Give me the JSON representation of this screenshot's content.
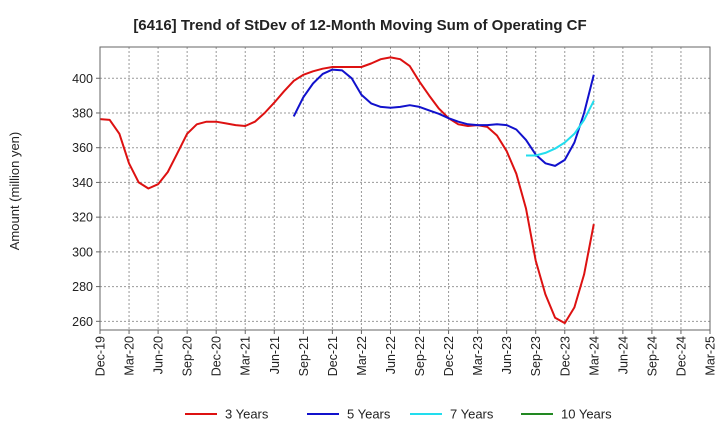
{
  "chart_data": {
    "type": "line",
    "title": "[6416]  Trend of StDev of 12-Month Moving Sum of Operating CF",
    "xlabel": "",
    "ylabel": "Amount (million yen)",
    "ylim": [
      255,
      418
    ],
    "yticks": [
      260,
      280,
      300,
      320,
      340,
      360,
      380,
      400
    ],
    "x_ticks": [
      "Dec-19",
      "Mar-20",
      "Jun-20",
      "Sep-20",
      "Dec-20",
      "Mar-21",
      "Jun-21",
      "Sep-21",
      "Dec-21",
      "Mar-22",
      "Jun-22",
      "Sep-22",
      "Dec-22",
      "Mar-23",
      "Jun-23",
      "Sep-23",
      "Dec-23",
      "Mar-24",
      "Jun-24",
      "Sep-24",
      "Dec-24",
      "Mar-25"
    ],
    "grid": true,
    "legend_position": "bottom",
    "series": [
      {
        "name": "3 Years",
        "color": "#dd1111",
        "points": [
          [
            "2019-12",
            376.5
          ],
          [
            "2020-01",
            376
          ],
          [
            "2020-02",
            368
          ],
          [
            "2020-03",
            351
          ],
          [
            "2020-04",
            340
          ],
          [
            "2020-05",
            336.5
          ],
          [
            "2020-06",
            339
          ],
          [
            "2020-07",
            346
          ],
          [
            "2020-08",
            357
          ],
          [
            "2020-09",
            368
          ],
          [
            "2020-10",
            373.5
          ],
          [
            "2020-11",
            375
          ],
          [
            "2020-12",
            375
          ],
          [
            "2021-01",
            374
          ],
          [
            "2021-02",
            373
          ],
          [
            "2021-03",
            372.5
          ],
          [
            "2021-04",
            375
          ],
          [
            "2021-05",
            380
          ],
          [
            "2021-06",
            386
          ],
          [
            "2021-07",
            392.5
          ],
          [
            "2021-08",
            398.5
          ],
          [
            "2021-09",
            402
          ],
          [
            "2021-10",
            404
          ],
          [
            "2021-11",
            405.5
          ],
          [
            "2021-12",
            406.5
          ],
          [
            "2022-01",
            406.5
          ],
          [
            "2022-02",
            406.5
          ],
          [
            "2022-03",
            406.5
          ],
          [
            "2022-04",
            408.5
          ],
          [
            "2022-05",
            411
          ],
          [
            "2022-06",
            412
          ],
          [
            "2022-07",
            411
          ],
          [
            "2022-08",
            407
          ],
          [
            "2022-09",
            398
          ],
          [
            "2022-10",
            390
          ],
          [
            "2022-11",
            382.5
          ],
          [
            "2022-12",
            377
          ],
          [
            "2023-01",
            373.5
          ],
          [
            "2023-02",
            372.5
          ],
          [
            "2023-03",
            373
          ],
          [
            "2023-04",
            372
          ],
          [
            "2023-05",
            367
          ],
          [
            "2023-06",
            358
          ],
          [
            "2023-07",
            345
          ],
          [
            "2023-08",
            325
          ],
          [
            "2023-09",
            295
          ],
          [
            "2023-10",
            275.5
          ],
          [
            "2023-11",
            262
          ],
          [
            "2023-12",
            259
          ],
          [
            "2024-01",
            268
          ],
          [
            "2024-02",
            287
          ],
          [
            "2024-03",
            316
          ]
        ]
      },
      {
        "name": "5 Years",
        "color": "#1111cc",
        "points": [
          [
            "2021-08",
            378
          ],
          [
            "2021-09",
            389
          ],
          [
            "2021-10",
            397
          ],
          [
            "2021-11",
            402.5
          ],
          [
            "2021-12",
            405
          ],
          [
            "2022-01",
            404.5
          ],
          [
            "2022-02",
            400
          ],
          [
            "2022-03",
            390.5
          ],
          [
            "2022-04",
            385.5
          ],
          [
            "2022-05",
            383.5
          ],
          [
            "2022-06",
            383
          ],
          [
            "2022-07",
            383.5
          ],
          [
            "2022-08",
            384.5
          ],
          [
            "2022-09",
            383.5
          ],
          [
            "2022-10",
            381.5
          ],
          [
            "2022-11",
            379.5
          ],
          [
            "2022-12",
            377
          ],
          [
            "2023-01",
            375
          ],
          [
            "2023-02",
            373.5
          ],
          [
            "2023-03",
            373
          ],
          [
            "2023-04",
            373
          ],
          [
            "2023-05",
            373.5
          ],
          [
            "2023-06",
            373
          ],
          [
            "2023-07",
            370.5
          ],
          [
            "2023-08",
            364.5
          ],
          [
            "2023-09",
            356
          ],
          [
            "2023-10",
            351
          ],
          [
            "2023-11",
            349.5
          ],
          [
            "2023-12",
            353
          ],
          [
            "2024-01",
            363
          ],
          [
            "2024-02",
            380
          ],
          [
            "2024-03",
            402
          ]
        ]
      },
      {
        "name": "7 Years",
        "color": "#22ddee",
        "points": [
          [
            "2023-08",
            355.5
          ],
          [
            "2023-09",
            355.5
          ],
          [
            "2023-10",
            357
          ],
          [
            "2023-11",
            359.5
          ],
          [
            "2023-12",
            363
          ],
          [
            "2024-01",
            368
          ],
          [
            "2024-02",
            376
          ],
          [
            "2024-03",
            387
          ]
        ]
      },
      {
        "name": "10 Years",
        "color": "#228822",
        "points": []
      }
    ]
  }
}
